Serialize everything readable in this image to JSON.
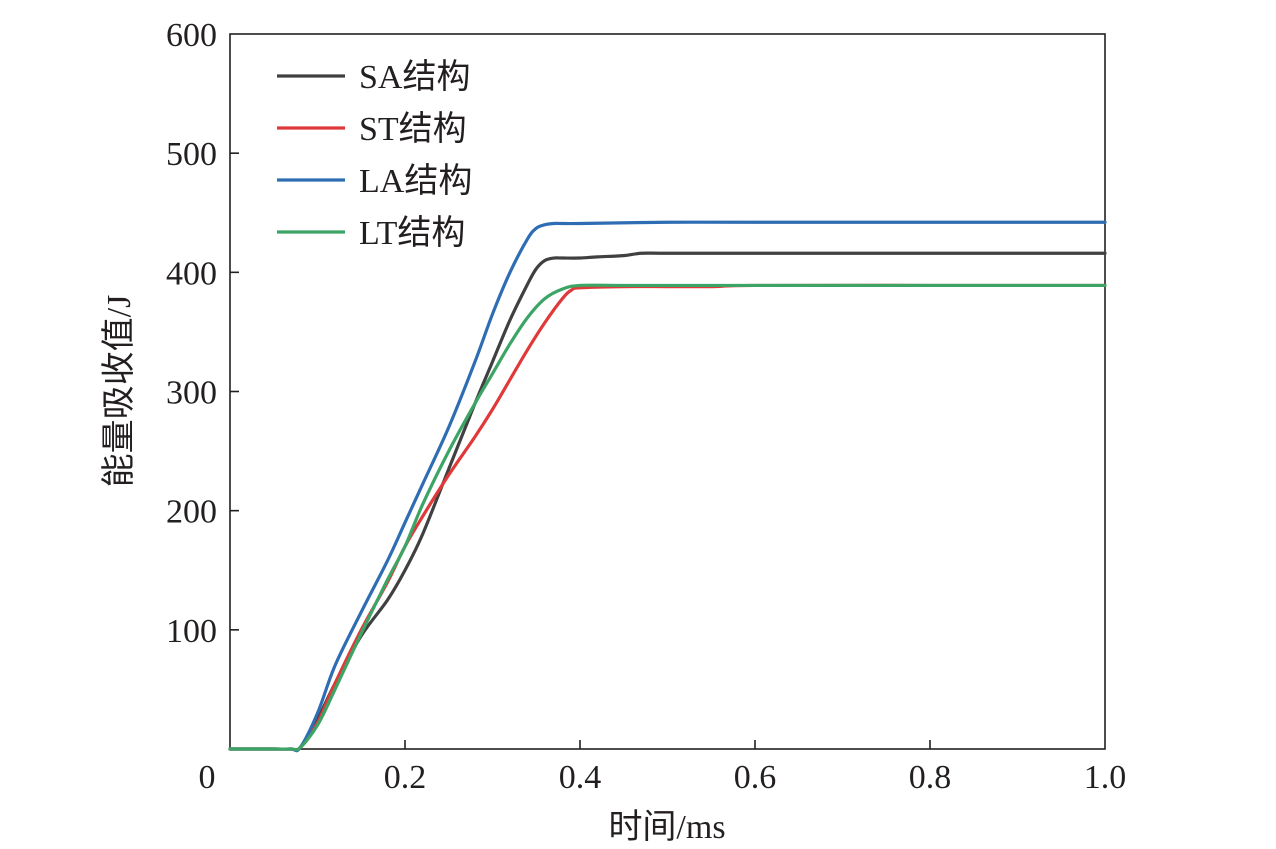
{
  "chart_data": {
    "type": "line",
    "title": "",
    "xlabel": "时间/ms",
    "ylabel": "能量吸收值/J",
    "xlim": [
      0,
      1.0
    ],
    "ylim": [
      0,
      600
    ],
    "x_ticks": [
      0,
      0.2,
      0.4,
      0.6,
      0.8,
      1.0
    ],
    "x_tick_labels": [
      "0",
      "0.2",
      "0.4",
      "0.6",
      "0.8",
      "1.0"
    ],
    "y_ticks": [
      100,
      200,
      300,
      400,
      500,
      600
    ],
    "y_tick_labels": [
      "100",
      "200",
      "300",
      "400",
      "500",
      "600"
    ],
    "grid": false,
    "legend_position": "top-left",
    "series": [
      {
        "name": "SA结构",
        "color": "#404040",
        "x": [
          0,
          0.02,
          0.05,
          0.07,
          0.08,
          0.1,
          0.12,
          0.15,
          0.18,
          0.2,
          0.22,
          0.25,
          0.28,
          0.3,
          0.32,
          0.34,
          0.35,
          0.36,
          0.37,
          0.38,
          0.4,
          0.42,
          0.45,
          0.47,
          0.5,
          0.6,
          0.7,
          0.8,
          0.9,
          1.0
        ],
        "y": [
          0,
          0,
          0,
          0,
          1,
          25,
          55,
          95,
          125,
          150,
          180,
          235,
          290,
          325,
          360,
          390,
          403,
          410,
          412,
          412,
          412,
          413,
          414,
          416,
          416,
          416,
          416,
          416,
          416,
          416
        ]
      },
      {
        "name": "ST结构",
        "color": "#e0393a",
        "x": [
          0,
          0.02,
          0.05,
          0.07,
          0.08,
          0.1,
          0.12,
          0.15,
          0.18,
          0.2,
          0.22,
          0.25,
          0.28,
          0.3,
          0.32,
          0.34,
          0.36,
          0.38,
          0.39,
          0.4,
          0.45,
          0.5,
          0.55,
          0.6,
          0.8,
          1.0
        ],
        "y": [
          0,
          0,
          0,
          0,
          1,
          22,
          55,
          100,
          140,
          170,
          195,
          230,
          262,
          285,
          310,
          335,
          358,
          378,
          385,
          387,
          388,
          388,
          388,
          389,
          389,
          389
        ]
      },
      {
        "name": "LA结构",
        "color": "#2e6db4",
        "x": [
          0,
          0.02,
          0.05,
          0.07,
          0.08,
          0.1,
          0.12,
          0.15,
          0.18,
          0.2,
          0.22,
          0.25,
          0.28,
          0.3,
          0.32,
          0.34,
          0.35,
          0.36,
          0.37,
          0.38,
          0.4,
          0.5,
          0.6,
          0.8,
          1.0
        ],
        "y": [
          0,
          0,
          0,
          0,
          1,
          30,
          70,
          115,
          158,
          190,
          222,
          270,
          325,
          365,
          400,
          428,
          437,
          440,
          441,
          441,
          441,
          442,
          442,
          442,
          442
        ]
      },
      {
        "name": "LT结构",
        "color": "#3ca566",
        "x": [
          0,
          0.02,
          0.05,
          0.07,
          0.08,
          0.1,
          0.12,
          0.15,
          0.18,
          0.2,
          0.22,
          0.25,
          0.28,
          0.3,
          0.32,
          0.34,
          0.36,
          0.38,
          0.4,
          0.45,
          0.5,
          0.6,
          0.8,
          1.0
        ],
        "y": [
          0,
          0,
          0,
          0,
          1,
          20,
          50,
          97,
          142,
          170,
          205,
          250,
          290,
          315,
          340,
          362,
          378,
          386,
          389,
          389,
          389,
          389,
          389,
          389
        ]
      }
    ]
  }
}
